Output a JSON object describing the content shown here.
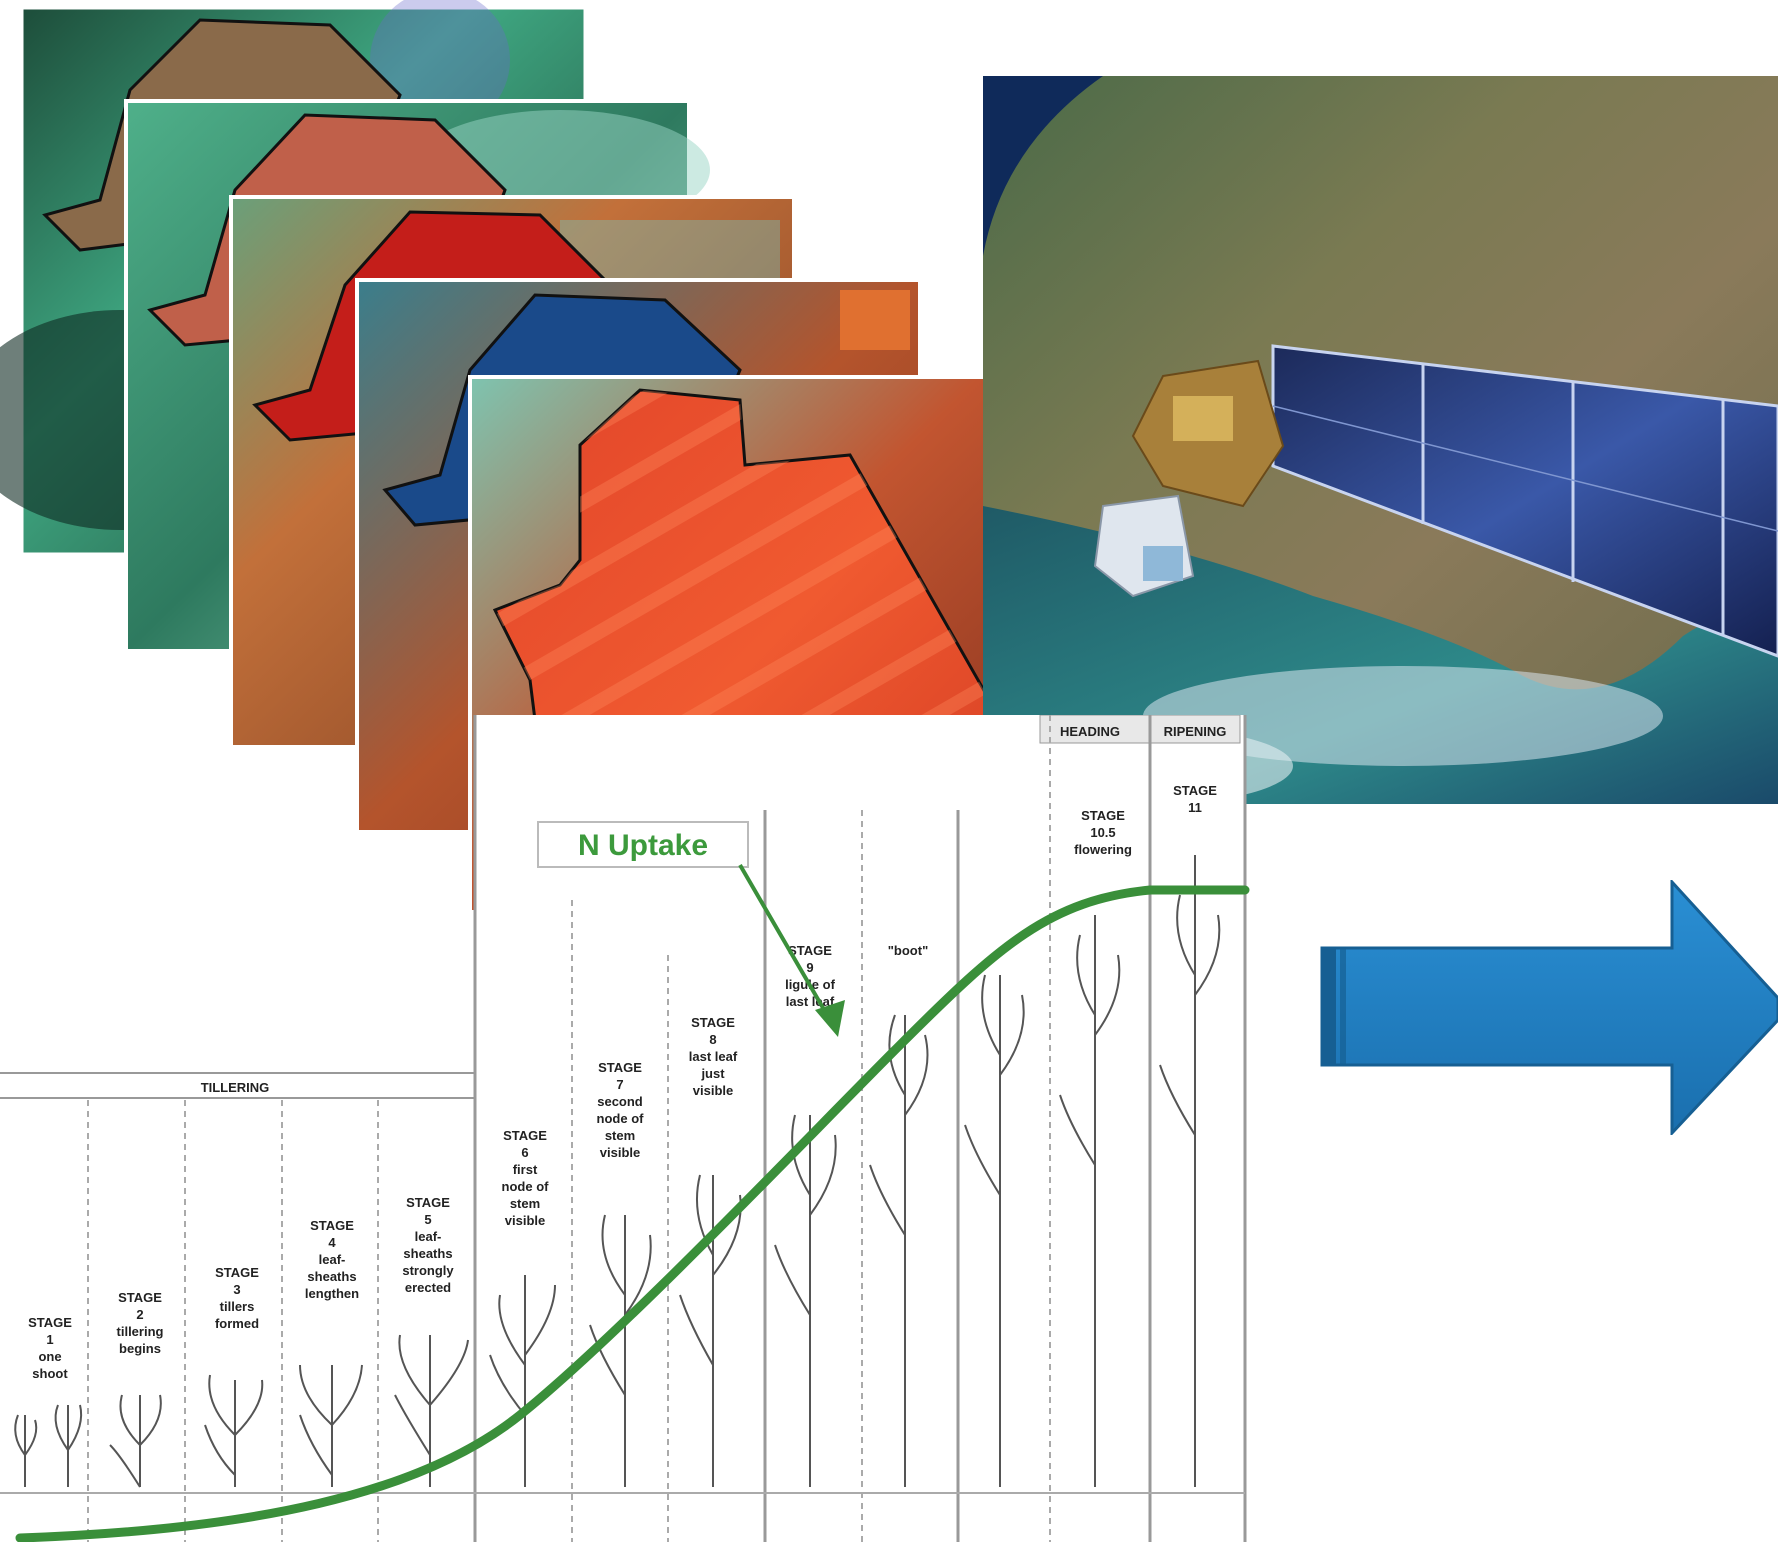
{
  "header": {
    "tillering": "TILLERING",
    "heading": "HEADING",
    "ripening": "RIPENING"
  },
  "stages": [
    {
      "line1": "STAGE",
      "line2": "1",
      "desc": [
        "one",
        "shoot"
      ]
    },
    {
      "line1": "STAGE",
      "line2": "2",
      "desc": [
        "tillering",
        "begins"
      ]
    },
    {
      "line1": "STAGE",
      "line2": "3",
      "desc": [
        "tillers",
        "formed"
      ]
    },
    {
      "line1": "STAGE",
      "line2": "4",
      "desc": [
        "leaf-",
        "sheaths",
        "lengthen"
      ]
    },
    {
      "line1": "STAGE",
      "line2": "5",
      "desc": [
        "leaf-",
        "sheaths",
        "strongly",
        "erected"
      ]
    },
    {
      "line1": "STAGE",
      "line2": "6",
      "desc": [
        "first",
        "node of",
        "stem",
        "visible"
      ]
    },
    {
      "line1": "STAGE",
      "line2": "7",
      "desc": [
        "second",
        "node of",
        "stem",
        "visible"
      ]
    },
    {
      "line1": "STAGE",
      "line2": "8",
      "desc": [
        "last leaf",
        "just",
        "visible"
      ]
    },
    {
      "line1": "STAGE",
      "line2": "9",
      "desc": [
        "ligule of",
        "last leaf"
      ]
    },
    {
      "line1": "",
      "line2": "",
      "desc": [
        "\"boot\""
      ]
    },
    {
      "line1": "STAGE",
      "line2": "10.5",
      "desc": [
        "flowering"
      ]
    },
    {
      "line1": "STAGE",
      "line2": "11",
      "desc": []
    }
  ],
  "n_uptake_label": "N Uptake",
  "colors": {
    "curve": "#3a8f3a",
    "label_green": "#3c9a3c",
    "arrow_blue": "#1f7fc2",
    "arrow_blue_dark": "#165f93"
  },
  "icons": {
    "satellite": "satellite-icon",
    "arrow": "right-arrow-icon"
  }
}
